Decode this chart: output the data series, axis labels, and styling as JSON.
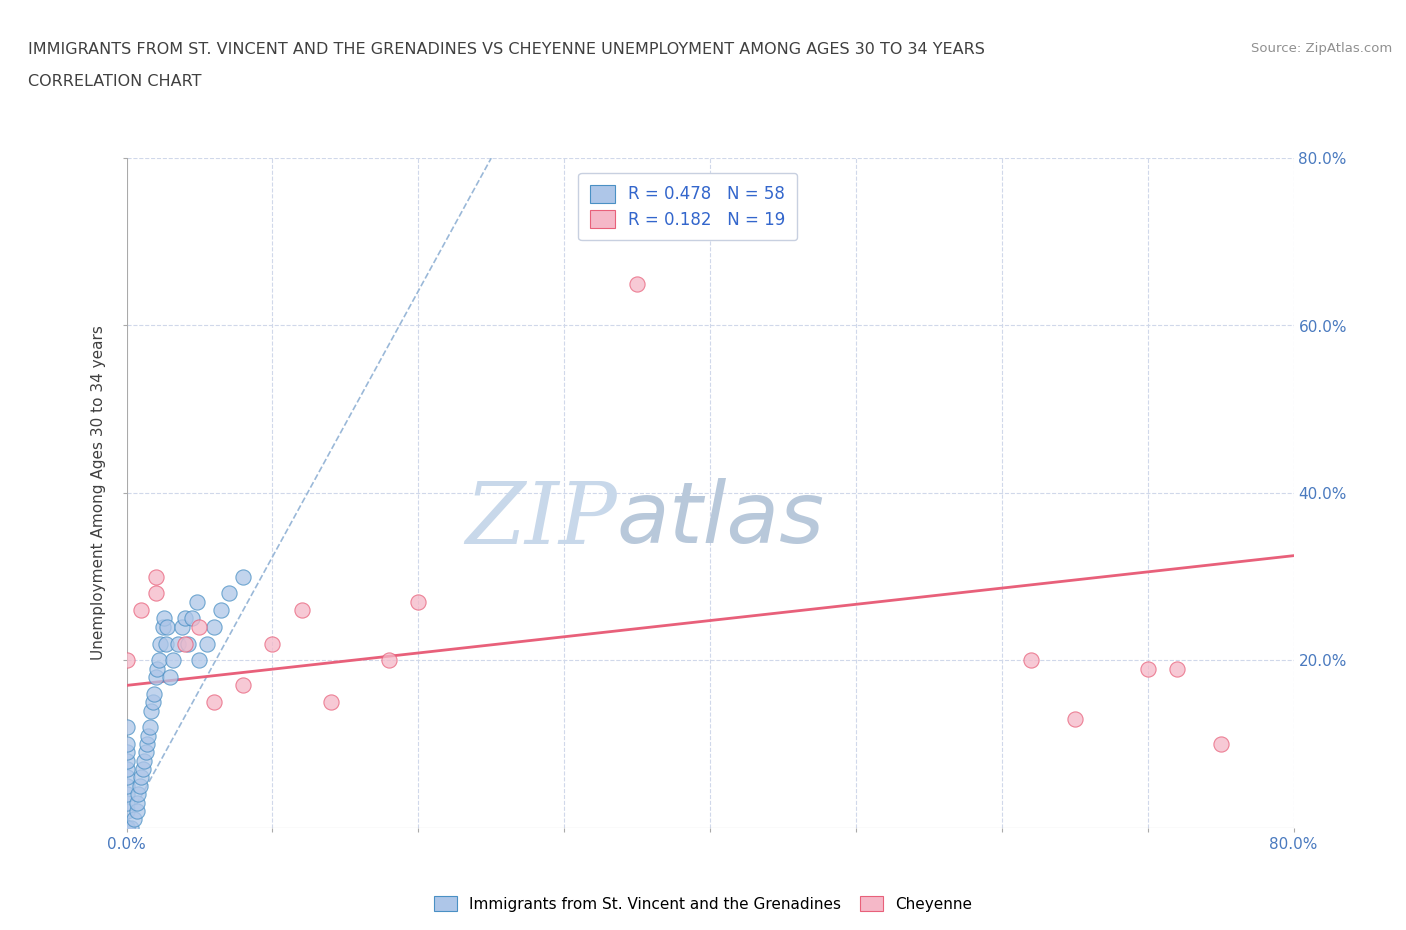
{
  "title_line1": "IMMIGRANTS FROM ST. VINCENT AND THE GRENADINES VS CHEYENNE UNEMPLOYMENT AMONG AGES 30 TO 34 YEARS",
  "title_line2": "CORRELATION CHART",
  "source_text": "Source: ZipAtlas.com",
  "ylabel": "Unemployment Among Ages 30 to 34 years",
  "xlim": [
    0,
    0.8
  ],
  "ylim": [
    0,
    0.8
  ],
  "xtick_vals": [
    0.0,
    0.1,
    0.2,
    0.3,
    0.4,
    0.5,
    0.6,
    0.7,
    0.8
  ],
  "ytick_vals": [
    0.2,
    0.4,
    0.6,
    0.8
  ],
  "blue_scatter_x": [
    0.0,
    0.0,
    0.0,
    0.0,
    0.0,
    0.0,
    0.0,
    0.0,
    0.0,
    0.0,
    0.0,
    0.0,
    0.0,
    0.0,
    0.0,
    0.0,
    0.0,
    0.0,
    0.0,
    0.0,
    0.003,
    0.005,
    0.007,
    0.007,
    0.008,
    0.009,
    0.01,
    0.011,
    0.012,
    0.013,
    0.014,
    0.015,
    0.016,
    0.017,
    0.018,
    0.019,
    0.02,
    0.021,
    0.022,
    0.023,
    0.025,
    0.026,
    0.027,
    0.028,
    0.03,
    0.032,
    0.035,
    0.038,
    0.04,
    0.042,
    0.045,
    0.048,
    0.05,
    0.055,
    0.06,
    0.065,
    0.07,
    0.08
  ],
  "blue_scatter_y": [
    0.0,
    0.0,
    0.0,
    0.0,
    0.0,
    0.0,
    0.0,
    0.0,
    0.0,
    0.0,
    0.02,
    0.03,
    0.04,
    0.05,
    0.06,
    0.07,
    0.08,
    0.09,
    0.1,
    0.12,
    0.0,
    0.01,
    0.02,
    0.03,
    0.04,
    0.05,
    0.06,
    0.07,
    0.08,
    0.09,
    0.1,
    0.11,
    0.12,
    0.14,
    0.15,
    0.16,
    0.18,
    0.19,
    0.2,
    0.22,
    0.24,
    0.25,
    0.22,
    0.24,
    0.18,
    0.2,
    0.22,
    0.24,
    0.25,
    0.22,
    0.25,
    0.27,
    0.2,
    0.22,
    0.24,
    0.26,
    0.28,
    0.3
  ],
  "blue_trend_x": [
    -0.005,
    0.25
  ],
  "blue_trend_y": [
    -0.01,
    0.8
  ],
  "pink_scatter_x": [
    0.0,
    0.01,
    0.02,
    0.02,
    0.04,
    0.05,
    0.06,
    0.08,
    0.1,
    0.12,
    0.14,
    0.18,
    0.2,
    0.35,
    0.62,
    0.65,
    0.7,
    0.72,
    0.75
  ],
  "pink_scatter_y": [
    0.2,
    0.26,
    0.28,
    0.3,
    0.22,
    0.24,
    0.15,
    0.17,
    0.22,
    0.26,
    0.15,
    0.2,
    0.27,
    0.65,
    0.2,
    0.13,
    0.19,
    0.19,
    0.1
  ],
  "pink_trend_x": [
    0.0,
    0.8
  ],
  "pink_trend_y": [
    0.17,
    0.325
  ],
  "blue_face_color": "#aec6e8",
  "blue_edge_color": "#4a90c4",
  "blue_trend_color": "#9ab8d8",
  "pink_face_color": "#f5b8c8",
  "pink_edge_color": "#e8607a",
  "pink_trend_color": "#e8607a",
  "R_blue": 0.478,
  "N_blue": 58,
  "R_pink": 0.182,
  "N_pink": 19,
  "legend_color": "#3366cc",
  "grid_color": "#d0d8ea",
  "grid_style": ":",
  "background_color": "#ffffff",
  "watermark_zip": "ZIP",
  "watermark_atlas": "atlas",
  "watermark_color_zip": "#c8d8ea",
  "watermark_color_atlas": "#b8c8da",
  "title_color": "#404040",
  "source_color": "#909090",
  "axis_label_color": "#4a7abf",
  "ytick_label_color": "#4a7abf",
  "xtick_label_color": "#4a7abf"
}
